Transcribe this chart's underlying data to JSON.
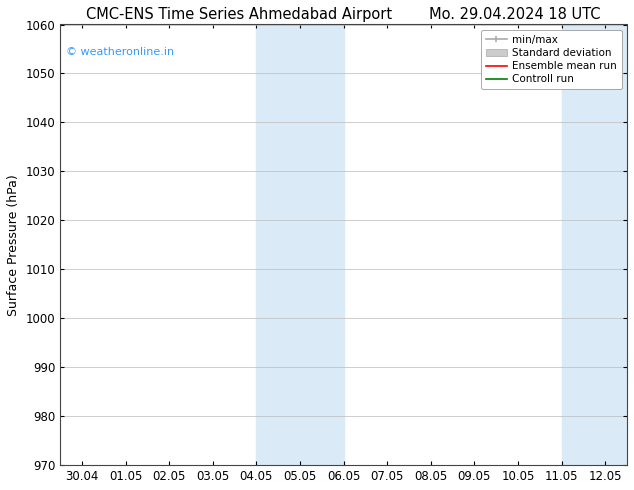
{
  "title_left": "CMC-ENS Time Series Ahmedabad Airport",
  "title_right": "Mo. 29.04.2024 18 UTC",
  "ylabel": "Surface Pressure (hPa)",
  "ylim": [
    970,
    1060
  ],
  "yticks": [
    970,
    980,
    990,
    1000,
    1010,
    1020,
    1030,
    1040,
    1050,
    1060
  ],
  "x_tick_labels": [
    "30.04",
    "01.05",
    "02.05",
    "03.05",
    "04.05",
    "05.05",
    "06.05",
    "07.05",
    "08.05",
    "09.05",
    "10.05",
    "11.05",
    "12.05"
  ],
  "x_tick_positions": [
    0,
    1,
    2,
    3,
    4,
    5,
    6,
    7,
    8,
    9,
    10,
    11,
    12
  ],
  "xlim": [
    -0.5,
    12.5
  ],
  "shaded_regions": [
    {
      "x_start": 4.0,
      "x_end": 5.0,
      "color": "#daeaf7"
    },
    {
      "x_start": 5.0,
      "x_end": 6.0,
      "color": "#daeaf7"
    },
    {
      "x_start": 11.0,
      "x_end": 12.0,
      "color": "#daeaf7"
    },
    {
      "x_start": 12.0,
      "x_end": 12.5,
      "color": "#daeaf7"
    }
  ],
  "watermark_text": "© weatheronline.in",
  "watermark_color": "#3399ff",
  "legend_labels": [
    "min/max",
    "Standard deviation",
    "Ensemble mean run",
    "Controll run"
  ],
  "legend_colors": [
    "#aaaaaa",
    "#cccccc",
    "red",
    "green"
  ],
  "bg_color": "#ffffff",
  "plot_bg": "#ffffff",
  "grid_color": "#bbbbbb",
  "title_fontsize": 10.5,
  "axis_label_fontsize": 9,
  "tick_fontsize": 8.5,
  "legend_fontsize": 7.5
}
